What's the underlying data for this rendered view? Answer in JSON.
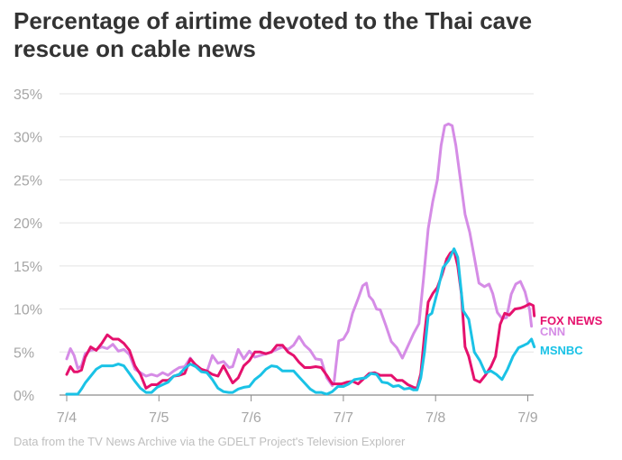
{
  "chart_data": {
    "type": "line",
    "title": "Percentage of airtime devoted to the Thai cave rescue on cable news",
    "source": "Data from the TV News Archive via the GDELT Project's Television Explorer",
    "xlabel": "",
    "ylabel": "",
    "ylim": [
      0,
      35
    ],
    "yticks": [
      0,
      5,
      10,
      15,
      20,
      25,
      30,
      35
    ],
    "ytick_labels": [
      "0%",
      "5%",
      "10%",
      "15%",
      "20%",
      "25%",
      "30%",
      "35%"
    ],
    "xticks": [
      0,
      1,
      2,
      3,
      4,
      5
    ],
    "xtick_labels": [
      "7/4",
      "7/5",
      "7/6",
      "7/7",
      "7/8",
      "7/9"
    ],
    "x_unit": "days since 7/4",
    "grid": true,
    "series": [
      {
        "name": "CNN",
        "color": "#d58ce6",
        "points": [
          [
            0,
            4.2
          ],
          [
            0.04,
            5.4
          ],
          [
            0.08,
            4.6
          ],
          [
            0.12,
            3.1
          ],
          [
            0.16,
            3.4
          ],
          [
            0.2,
            4.8
          ],
          [
            0.26,
            5.2
          ],
          [
            0.32,
            5.3
          ],
          [
            0.38,
            5.6
          ],
          [
            0.44,
            5.4
          ],
          [
            0.5,
            5.9
          ],
          [
            0.56,
            5.1
          ],
          [
            0.62,
            5.3
          ],
          [
            0.68,
            4.7
          ],
          [
            0.74,
            3.0
          ],
          [
            0.8,
            2.6
          ],
          [
            0.86,
            2.2
          ],
          [
            0.92,
            2.4
          ],
          [
            0.98,
            2.2
          ],
          [
            1.04,
            2.6
          ],
          [
            1.1,
            2.3
          ],
          [
            1.16,
            2.8
          ],
          [
            1.22,
            3.2
          ],
          [
            1.28,
            3.3
          ],
          [
            1.34,
            4.3
          ],
          [
            1.4,
            3.4
          ],
          [
            1.46,
            3.0
          ],
          [
            1.52,
            2.7
          ],
          [
            1.58,
            4.6
          ],
          [
            1.64,
            3.7
          ],
          [
            1.7,
            3.9
          ],
          [
            1.76,
            3.2
          ],
          [
            1.8,
            3.3
          ],
          [
            1.86,
            5.3
          ],
          [
            1.92,
            4.2
          ],
          [
            1.98,
            5.1
          ],
          [
            2.04,
            4.4
          ],
          [
            2.1,
            4.6
          ],
          [
            2.16,
            4.8
          ],
          [
            2.22,
            5.0
          ],
          [
            2.28,
            5.3
          ],
          [
            2.34,
            5.6
          ],
          [
            2.4,
            5.3
          ],
          [
            2.46,
            5.8
          ],
          [
            2.52,
            6.8
          ],
          [
            2.58,
            5.8
          ],
          [
            2.64,
            5.2
          ],
          [
            2.7,
            4.2
          ],
          [
            2.76,
            4.1
          ],
          [
            2.82,
            2.0
          ],
          [
            2.88,
            1.1
          ],
          [
            2.9,
            1.6
          ],
          [
            2.95,
            6.3
          ],
          [
            3.0,
            6.5
          ],
          [
            3.05,
            7.4
          ],
          [
            3.1,
            9.5
          ],
          [
            3.16,
            11.2
          ],
          [
            3.21,
            12.7
          ],
          [
            3.25,
            13.0
          ],
          [
            3.28,
            11.5
          ],
          [
            3.32,
            11.0
          ],
          [
            3.36,
            10.0
          ],
          [
            3.4,
            9.9
          ],
          [
            3.46,
            8.1
          ],
          [
            3.52,
            6.2
          ],
          [
            3.58,
            5.5
          ],
          [
            3.64,
            4.3
          ],
          [
            3.7,
            5.7
          ],
          [
            3.76,
            7.1
          ],
          [
            3.82,
            8.3
          ],
          [
            3.87,
            13.6
          ],
          [
            3.92,
            19.3
          ],
          [
            3.97,
            22.5
          ],
          [
            4.02,
            25.0
          ],
          [
            4.06,
            29.0
          ],
          [
            4.1,
            31.3
          ],
          [
            4.14,
            31.5
          ],
          [
            4.18,
            31.3
          ],
          [
            4.22,
            29.0
          ],
          [
            4.27,
            25.0
          ],
          [
            4.32,
            21.0
          ],
          [
            4.37,
            18.9
          ],
          [
            4.42,
            16.0
          ],
          [
            4.47,
            13.0
          ],
          [
            4.53,
            12.6
          ],
          [
            4.58,
            12.9
          ],
          [
            4.62,
            11.8
          ],
          [
            4.67,
            9.6
          ],
          [
            4.72,
            8.9
          ],
          [
            4.77,
            9.0
          ],
          [
            4.82,
            11.7
          ],
          [
            4.87,
            12.9
          ],
          [
            4.92,
            13.2
          ],
          [
            4.97,
            12.0
          ],
          [
            5.02,
            9.9
          ],
          [
            5.04,
            8.0
          ]
        ]
      },
      {
        "name": "FOX NEWS",
        "color": "#e5116d",
        "points": [
          [
            0,
            2.4
          ],
          [
            0.04,
            3.3
          ],
          [
            0.08,
            2.7
          ],
          [
            0.12,
            2.7
          ],
          [
            0.16,
            2.9
          ],
          [
            0.2,
            4.4
          ],
          [
            0.26,
            5.6
          ],
          [
            0.32,
            5.2
          ],
          [
            0.38,
            6.0
          ],
          [
            0.44,
            7.0
          ],
          [
            0.5,
            6.5
          ],
          [
            0.56,
            6.5
          ],
          [
            0.62,
            6.0
          ],
          [
            0.68,
            5.2
          ],
          [
            0.74,
            3.4
          ],
          [
            0.8,
            2.4
          ],
          [
            0.86,
            0.8
          ],
          [
            0.92,
            1.2
          ],
          [
            0.98,
            1.2
          ],
          [
            1.04,
            1.7
          ],
          [
            1.1,
            1.7
          ],
          [
            1.16,
            2.2
          ],
          [
            1.22,
            2.3
          ],
          [
            1.28,
            2.5
          ],
          [
            1.34,
            4.2
          ],
          [
            1.4,
            3.5
          ],
          [
            1.46,
            3.0
          ],
          [
            1.52,
            2.8
          ],
          [
            1.58,
            2.4
          ],
          [
            1.64,
            2.2
          ],
          [
            1.7,
            3.4
          ],
          [
            1.76,
            2.2
          ],
          [
            1.8,
            1.4
          ],
          [
            1.86,
            2.0
          ],
          [
            1.92,
            3.4
          ],
          [
            1.98,
            4.0
          ],
          [
            2.04,
            5.0
          ],
          [
            2.1,
            5.0
          ],
          [
            2.16,
            4.8
          ],
          [
            2.22,
            5.0
          ],
          [
            2.28,
            5.8
          ],
          [
            2.34,
            5.8
          ],
          [
            2.4,
            5.0
          ],
          [
            2.46,
            4.6
          ],
          [
            2.52,
            3.8
          ],
          [
            2.58,
            3.2
          ],
          [
            2.64,
            3.2
          ],
          [
            2.7,
            3.3
          ],
          [
            2.76,
            3.2
          ],
          [
            2.82,
            2.3
          ],
          [
            2.88,
            1.3
          ],
          [
            2.92,
            1.3
          ],
          [
            2.98,
            1.3
          ],
          [
            3.04,
            1.5
          ],
          [
            3.1,
            1.6
          ],
          [
            3.16,
            1.3
          ],
          [
            3.22,
            1.9
          ],
          [
            3.28,
            2.5
          ],
          [
            3.34,
            2.6
          ],
          [
            3.4,
            2.3
          ],
          [
            3.46,
            2.3
          ],
          [
            3.52,
            2.3
          ],
          [
            3.58,
            1.7
          ],
          [
            3.64,
            1.7
          ],
          [
            3.7,
            1.2
          ],
          [
            3.76,
            0.9
          ],
          [
            3.8,
            0.8
          ],
          [
            3.84,
            2.5
          ],
          [
            3.88,
            7.0
          ],
          [
            3.92,
            10.8
          ],
          [
            3.97,
            11.8
          ],
          [
            4.02,
            12.5
          ],
          [
            4.07,
            14.0
          ],
          [
            4.12,
            15.8
          ],
          [
            4.16,
            16.5
          ],
          [
            4.2,
            16.8
          ],
          [
            4.24,
            15.0
          ],
          [
            4.28,
            11.8
          ],
          [
            4.32,
            5.6
          ],
          [
            4.36,
            4.5
          ],
          [
            4.42,
            1.8
          ],
          [
            4.48,
            1.5
          ],
          [
            4.54,
            2.3
          ],
          [
            4.6,
            3.3
          ],
          [
            4.65,
            4.5
          ],
          [
            4.7,
            8.2
          ],
          [
            4.75,
            9.5
          ],
          [
            4.8,
            9.3
          ],
          [
            4.86,
            10.0
          ],
          [
            4.92,
            10.1
          ],
          [
            4.97,
            10.3
          ],
          [
            5.02,
            10.6
          ],
          [
            5.06,
            10.4
          ],
          [
            5.07,
            9.2
          ]
        ]
      },
      {
        "name": "MSNBC",
        "color": "#1ac2e6",
        "points": [
          [
            0,
            0.1
          ],
          [
            0.04,
            0.1
          ],
          [
            0.08,
            0.1
          ],
          [
            0.12,
            0.1
          ],
          [
            0.16,
            0.7
          ],
          [
            0.2,
            1.4
          ],
          [
            0.26,
            2.2
          ],
          [
            0.32,
            3.0
          ],
          [
            0.38,
            3.4
          ],
          [
            0.44,
            3.4
          ],
          [
            0.5,
            3.4
          ],
          [
            0.56,
            3.6
          ],
          [
            0.62,
            3.4
          ],
          [
            0.68,
            2.5
          ],
          [
            0.74,
            1.6
          ],
          [
            0.8,
            0.8
          ],
          [
            0.86,
            0.3
          ],
          [
            0.92,
            0.3
          ],
          [
            0.98,
            0.9
          ],
          [
            1.04,
            1.2
          ],
          [
            1.1,
            1.5
          ],
          [
            1.16,
            2.2
          ],
          [
            1.22,
            2.4
          ],
          [
            1.28,
            3.1
          ],
          [
            1.34,
            3.6
          ],
          [
            1.4,
            3.3
          ],
          [
            1.46,
            2.7
          ],
          [
            1.52,
            2.6
          ],
          [
            1.58,
            1.8
          ],
          [
            1.64,
            0.8
          ],
          [
            1.7,
            0.4
          ],
          [
            1.76,
            0.3
          ],
          [
            1.8,
            0.3
          ],
          [
            1.86,
            0.7
          ],
          [
            1.92,
            0.9
          ],
          [
            1.98,
            1.0
          ],
          [
            2.04,
            1.8
          ],
          [
            2.1,
            2.3
          ],
          [
            2.16,
            3.0
          ],
          [
            2.22,
            3.4
          ],
          [
            2.28,
            3.3
          ],
          [
            2.34,
            2.8
          ],
          [
            2.4,
            2.8
          ],
          [
            2.46,
            2.8
          ],
          [
            2.52,
            2.1
          ],
          [
            2.58,
            1.4
          ],
          [
            2.64,
            0.7
          ],
          [
            2.7,
            0.3
          ],
          [
            2.76,
            0.3
          ],
          [
            2.82,
            0.1
          ],
          [
            2.88,
            0.4
          ],
          [
            2.94,
            1.0
          ],
          [
            3.0,
            1.0
          ],
          [
            3.06,
            1.3
          ],
          [
            3.12,
            1.8
          ],
          [
            3.18,
            1.9
          ],
          [
            3.24,
            2.0
          ],
          [
            3.3,
            2.5
          ],
          [
            3.36,
            2.4
          ],
          [
            3.42,
            1.5
          ],
          [
            3.48,
            1.4
          ],
          [
            3.54,
            1.0
          ],
          [
            3.6,
            1.1
          ],
          [
            3.66,
            0.7
          ],
          [
            3.72,
            0.8
          ],
          [
            3.76,
            0.6
          ],
          [
            3.8,
            0.6
          ],
          [
            3.84,
            2.0
          ],
          [
            3.88,
            5.0
          ],
          [
            3.92,
            9.2
          ],
          [
            3.96,
            9.5
          ],
          [
            4.02,
            12.0
          ],
          [
            4.08,
            14.8
          ],
          [
            4.14,
            15.6
          ],
          [
            4.2,
            17.0
          ],
          [
            4.24,
            16.0
          ],
          [
            4.3,
            9.8
          ],
          [
            4.36,
            8.8
          ],
          [
            4.42,
            5.0
          ],
          [
            4.48,
            4.0
          ],
          [
            4.54,
            2.6
          ],
          [
            4.6,
            2.8
          ],
          [
            4.66,
            2.4
          ],
          [
            4.72,
            1.8
          ],
          [
            4.78,
            3.0
          ],
          [
            4.84,
            4.5
          ],
          [
            4.9,
            5.5
          ],
          [
            4.96,
            5.8
          ],
          [
            5.0,
            6.0
          ],
          [
            5.04,
            6.5
          ],
          [
            5.07,
            5.6
          ]
        ]
      }
    ]
  }
}
